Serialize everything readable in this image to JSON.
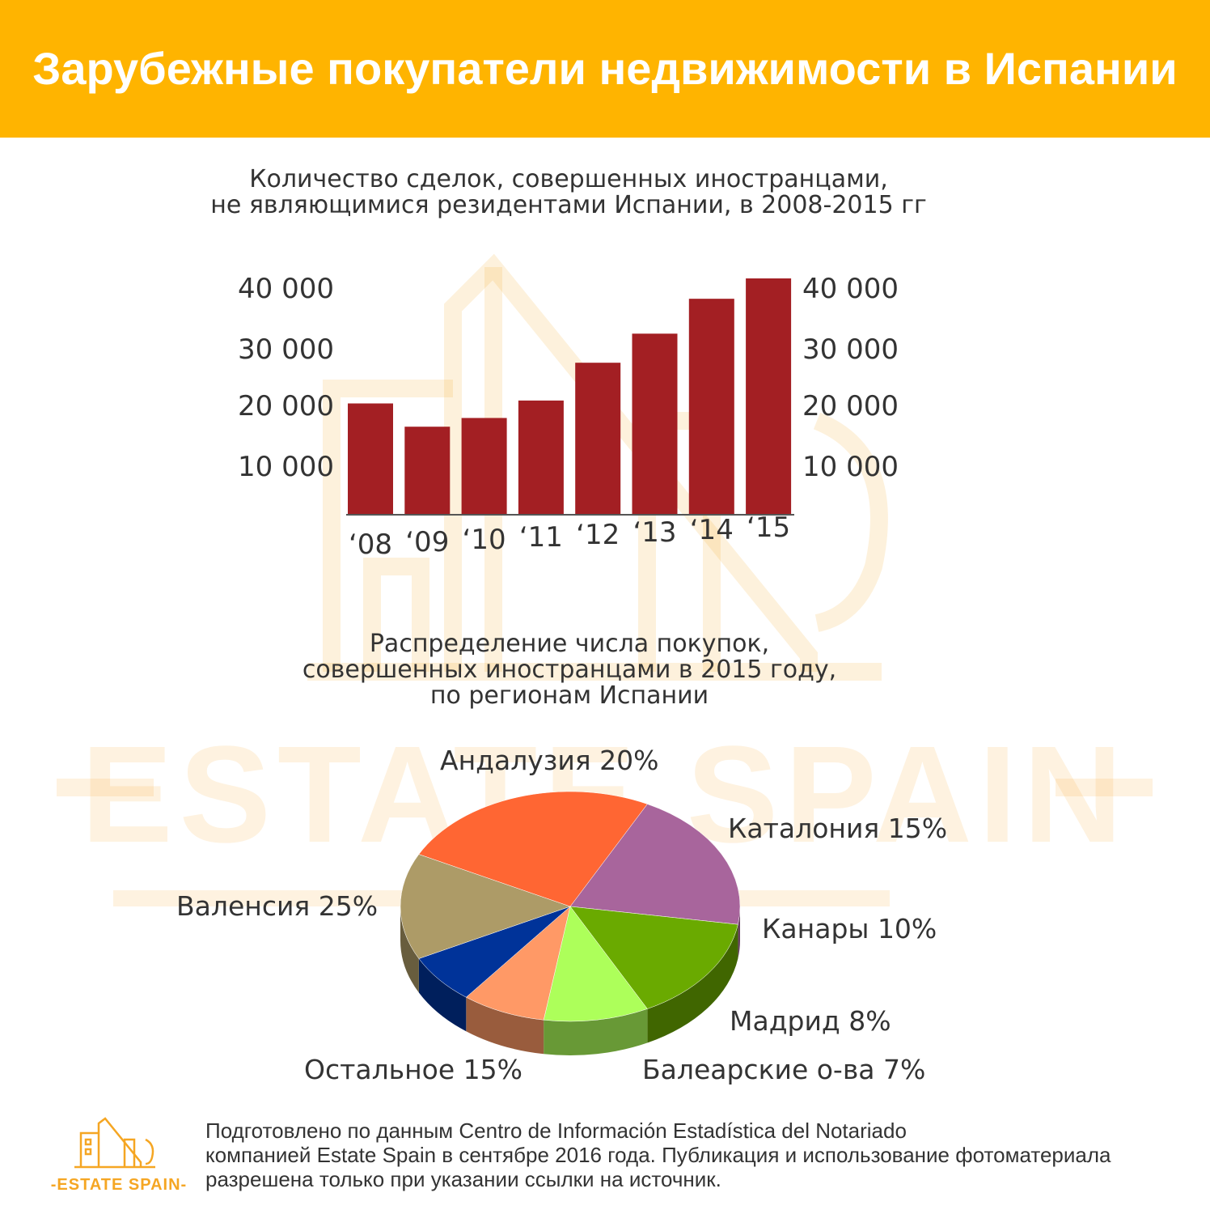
{
  "header": {
    "title": "Зарубежные покупатели недвижимости в Испании"
  },
  "watermark": {
    "brand": "-ESTATE SPAIN-"
  },
  "colors": {
    "header": "#FFB400",
    "bar": "#A31F23",
    "accent": "#F5A623"
  },
  "chart_data": [
    {
      "type": "bar",
      "title_lines": [
        "Количество сделок, совершенных иностранцами,",
        "не являющимися резидентами Испании, в 2008-2015 гг"
      ],
      "categories": [
        "‘08",
        "‘09",
        "‘10",
        "‘11",
        "‘12",
        "‘13",
        "‘14",
        "‘15"
      ],
      "values": [
        19000,
        15000,
        16500,
        19500,
        26000,
        31000,
        37000,
        40500
      ],
      "yticks": [
        10000,
        20000,
        30000,
        40000
      ],
      "ytick_labels": [
        "10 000",
        "20 000",
        "30 000",
        "40 000"
      ],
      "ylim": [
        0,
        42000
      ],
      "grid": false,
      "color": "#A31F23"
    },
    {
      "type": "pie",
      "title_lines": [
        "Распределение числа покупок,",
        "совершенных иностранцами в 2015 году,",
        "по регионам Испании"
      ],
      "slices": [
        {
          "label": "Андалузия 20%",
          "name": "Андалузия",
          "value": 20,
          "color": "#A8659C"
        },
        {
          "label": "Каталония 15%",
          "name": "Каталония",
          "value": 15,
          "color": "#6AAA00"
        },
        {
          "label": "Канары 10%",
          "name": "Канары",
          "value": 10,
          "color": "#ADFF5A"
        },
        {
          "label": "Мадрид 8%",
          "name": "Мадрид",
          "value": 8,
          "color": "#FF9966"
        },
        {
          "label": "Балеарские о-ва 7%",
          "name": "Балеарские о-ва",
          "value": 7,
          "color": "#003399"
        },
        {
          "label": "Остальное 15%",
          "name": "Остальное",
          "value": 15,
          "color": "#AD9B67"
        },
        {
          "label": "Валенсия 25%",
          "name": "Валенсия",
          "value": 25,
          "color": "#FF6633"
        }
      ]
    }
  ],
  "footer": {
    "logo_text": "-ESTATE SPAIN-",
    "lines": [
      "Подготовлено по данным Centro de Información Estadística del Notariado",
      "компанией Estate Spain в сентябре 2016 года. Публикация и использование фотоматериала",
      "разрешена только при указании ссылки на источник."
    ]
  }
}
